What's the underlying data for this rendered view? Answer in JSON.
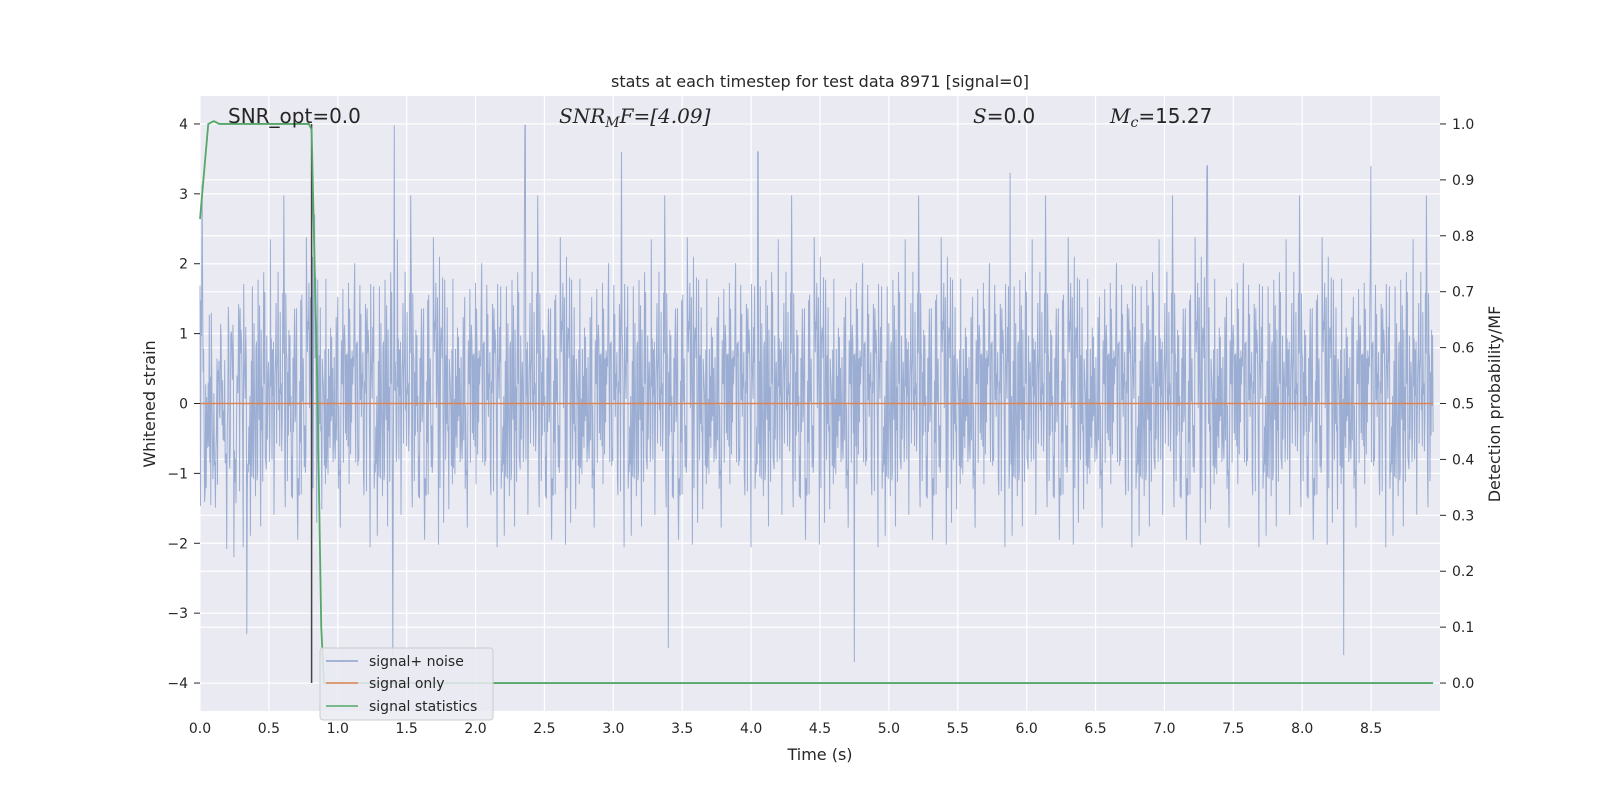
{
  "chart_data": {
    "type": "line",
    "title": "stats at each timestep for test data 8971 [signal=0]",
    "xlabel": "Time (s)",
    "ylabel": "Whitened strain",
    "ylabel_right": "Detection probability/MF",
    "xlim": [
      0.0,
      9.0
    ],
    "ylim": [
      -4.4,
      4.4
    ],
    "ylim_right": [
      -0.05,
      1.05
    ],
    "x_ticks": [
      "0.0",
      "0.5",
      "1.0",
      "1.5",
      "2.0",
      "2.5",
      "3.0",
      "3.5",
      "4.0",
      "4.5",
      "5.0",
      "5.5",
      "6.0",
      "6.5",
      "7.0",
      "7.5",
      "8.0",
      "8.5"
    ],
    "y_ticks": [
      "4",
      "3",
      "2",
      "1",
      "0",
      "−1",
      "−2",
      "−3",
      "−4"
    ],
    "y_ticks_right": [
      "1.0",
      "0.9",
      "0.8",
      "0.7",
      "0.6",
      "0.5",
      "0.4",
      "0.3",
      "0.2",
      "0.1",
      "0.0"
    ],
    "annotations": {
      "snr_opt": "SNR_opt=0.0",
      "snr_mf_base": "SNR",
      "snr_mf_sub": "M",
      "snr_mf_rest": "F=[4.09]",
      "s_sym": "S",
      "s_rest": "=0.0",
      "mc_sym": "M",
      "mc_sub": "c",
      "mc_rest": "=15.27"
    },
    "grid": true,
    "legend_placement": "bottom-left",
    "series": [
      {
        "name": "signal+ noise",
        "color": "#8da2cc",
        "description": "whitened strain noise, roughly within ±2.5 with spikes to about ±4",
        "sample_peaks": [
          [
            0.83,
            2.7
          ],
          [
            1.41,
            4.0
          ],
          [
            2.36,
            4.0
          ],
          [
            3.06,
            3.6
          ],
          [
            4.05,
            3.6
          ],
          [
            5.88,
            3.3
          ],
          [
            7.31,
            3.4
          ],
          [
            8.5,
            3.4
          ],
          [
            0.34,
            -3.3
          ],
          [
            1.4,
            -3.6
          ],
          [
            3.4,
            -3.5
          ],
          [
            4.75,
            -3.7
          ],
          [
            8.3,
            -3.6
          ]
        ]
      },
      {
        "name": "signal only",
        "color": "#dd8452",
        "x": [
          0.0,
          8.95
        ],
        "y": [
          0.0,
          0.0
        ]
      },
      {
        "name": "signal statistics",
        "color": "#55a868",
        "axis": "right",
        "x": [
          0.0,
          0.06,
          0.1,
          0.14,
          0.2,
          0.3,
          0.5,
          0.7,
          0.79,
          0.81,
          0.85,
          0.88,
          0.9,
          1.0,
          2.0,
          4.0,
          6.0,
          8.0,
          8.95
        ],
        "y": [
          0.83,
          1.0,
          1.005,
          1.0,
          1.0,
          1.0,
          1.0,
          1.0,
          1.0,
          0.99,
          0.55,
          0.1,
          0.0,
          0.0,
          0.0,
          0.0,
          0.0,
          0.0,
          0.0
        ]
      }
    ],
    "vertical_marker": {
      "x": 0.81,
      "color": "#444444",
      "y": [
        -4.0,
        4.0
      ]
    }
  },
  "colors": {
    "axes_bg": "#eaeaf2",
    "grid": "#ffffff",
    "noise": "#8da2cc",
    "signal_only": "#dd8452",
    "statistics": "#55a868",
    "marker": "#444444"
  }
}
